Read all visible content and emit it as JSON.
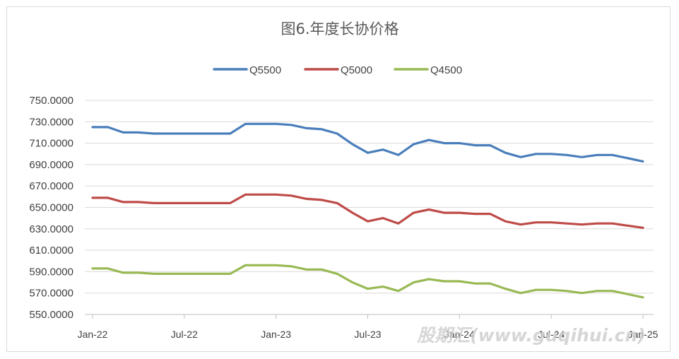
{
  "chart_data": {
    "type": "line",
    "title": "图6.年度长协价格",
    "legend_position": "top-center",
    "grid": true,
    "ylim": [
      550,
      750
    ],
    "yticks": [
      "750.0000",
      "730.0000",
      "710.0000",
      "690.0000",
      "670.0000",
      "650.0000",
      "630.0000",
      "610.0000",
      "590.0000",
      "570.0000",
      "550.0000"
    ],
    "ytick_values": [
      750,
      730,
      710,
      690,
      670,
      650,
      630,
      610,
      590,
      570,
      550
    ],
    "xtick_labels": [
      "Jan-22",
      "Jul-22",
      "Jan-23",
      "Jul-23",
      "Jan-24",
      "Jul-24",
      "Jan-25"
    ],
    "xtick_indices": [
      0,
      6,
      12,
      18,
      24,
      30,
      36
    ],
    "x": [
      "2022-01",
      "2022-02",
      "2022-03",
      "2022-04",
      "2022-05",
      "2022-06",
      "2022-07",
      "2022-08",
      "2022-09",
      "2022-10",
      "2022-11",
      "2022-12",
      "2023-01",
      "2023-02",
      "2023-03",
      "2023-04",
      "2023-05",
      "2023-06",
      "2023-07",
      "2023-08",
      "2023-09",
      "2023-10",
      "2023-11",
      "2023-12",
      "2024-01",
      "2024-02",
      "2024-03",
      "2024-04",
      "2024-05",
      "2024-06",
      "2024-07",
      "2024-08",
      "2024-09",
      "2024-10",
      "2024-11",
      "2024-12",
      "2025-01"
    ],
    "series": [
      {
        "name": "Q5500",
        "color": "#4a7ebb",
        "values": [
          725,
          725,
          720,
          720,
          719,
          719,
          719,
          719,
          719,
          719,
          728,
          728,
          728,
          727,
          724,
          723,
          719,
          709,
          701,
          704,
          699,
          709,
          713,
          710,
          710,
          708,
          708,
          701,
          697,
          700,
          700,
          699,
          697,
          699,
          699,
          696,
          693
        ]
      },
      {
        "name": "Q5000",
        "color": "#be4b48",
        "values": [
          659,
          659,
          655,
          655,
          654,
          654,
          654,
          654,
          654,
          654,
          662,
          662,
          662,
          661,
          658,
          657,
          654,
          645,
          637,
          640,
          635,
          645,
          648,
          645,
          645,
          644,
          644,
          637,
          634,
          636,
          636,
          635,
          634,
          635,
          635,
          633,
          631
        ]
      },
      {
        "name": "Q4500",
        "color": "#98b954",
        "values": [
          593,
          593,
          589,
          589,
          588,
          588,
          588,
          588,
          588,
          588,
          596,
          596,
          596,
          595,
          592,
          592,
          588,
          580,
          574,
          576,
          572,
          580,
          583,
          581,
          581,
          579,
          579,
          574,
          570,
          573,
          573,
          572,
          570,
          572,
          572,
          569,
          566
        ]
      }
    ]
  },
  "watermark": "股期汇(www.guqihui.cn)"
}
